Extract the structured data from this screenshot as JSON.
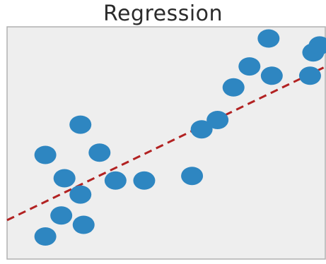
{
  "chart_data": {
    "type": "scatter",
    "title": "Regression",
    "xlabel": "",
    "ylabel": "",
    "xlim": [
      0,
      100
    ],
    "ylim": [
      0,
      100
    ],
    "grid": false,
    "axes_visible": false,
    "colors": {
      "points": "#2e86c1",
      "regression_line": "#b22222",
      "plot_background": "#eeeeee",
      "frame": "#b0b0b0"
    },
    "series": [
      {
        "points": [
          {
            "x": 12,
            "y": 10
          },
          {
            "x": 17,
            "y": 19
          },
          {
            "x": 24,
            "y": 15
          },
          {
            "x": 12,
            "y": 45
          },
          {
            "x": 18,
            "y": 35
          },
          {
            "x": 23,
            "y": 28
          },
          {
            "x": 23,
            "y": 58
          },
          {
            "x": 29,
            "y": 46
          },
          {
            "x": 34,
            "y": 34
          },
          {
            "x": 43,
            "y": 34
          },
          {
            "x": 58,
            "y": 36
          },
          {
            "x": 61,
            "y": 56
          },
          {
            "x": 66,
            "y": 60
          },
          {
            "x": 71,
            "y": 74
          },
          {
            "x": 76,
            "y": 83
          },
          {
            "x": 82,
            "y": 95
          },
          {
            "x": 83,
            "y": 79
          },
          {
            "x": 95,
            "y": 79
          },
          {
            "x": 96,
            "y": 89
          },
          {
            "x": 98,
            "y": 92
          }
        ]
      }
    ],
    "regression_line": {
      "style": "dashed",
      "start": {
        "x": 0,
        "y": 17
      },
      "end": {
        "x": 100,
        "y": 83
      }
    }
  }
}
